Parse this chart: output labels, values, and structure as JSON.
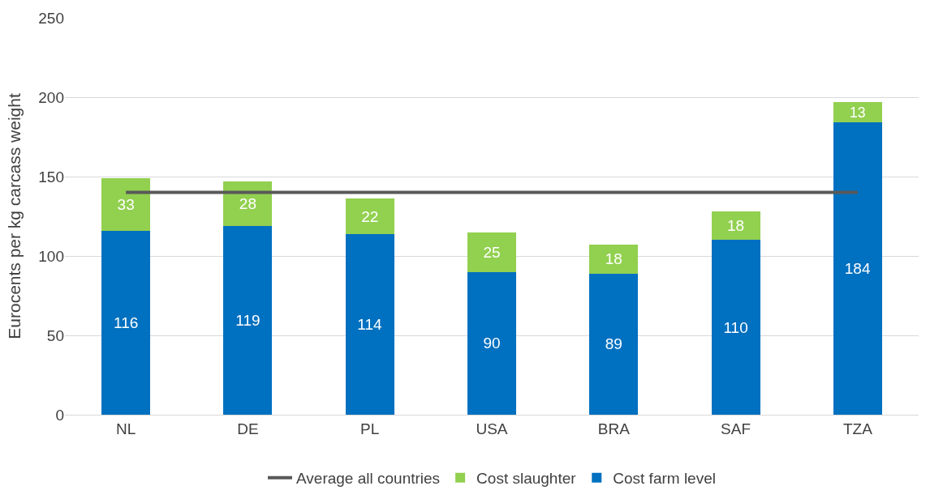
{
  "chart_data": {
    "type": "bar",
    "stacked": true,
    "ylabel": "Eurocents per kg carcass weight",
    "categories": [
      "NL",
      "DE",
      "PL",
      "USA",
      "BRA",
      "SAF",
      "TZA"
    ],
    "series": [
      {
        "name": "Cost farm level",
        "color": "#0070c0",
        "values": [
          116,
          119,
          114,
          90,
          89,
          110,
          184
        ],
        "value_labels": [
          "116",
          "119",
          "114",
          "90",
          "89",
          "110",
          "184"
        ]
      },
      {
        "name": "Cost slaughter",
        "color": "#92d050",
        "values": [
          33,
          28,
          22,
          25,
          18,
          18,
          13
        ],
        "value_labels": [
          "33",
          "28",
          "22",
          "25",
          "18",
          "18",
          "13"
        ]
      },
      {
        "name": "Average all countries",
        "type": "line",
        "color": "#595959",
        "values": [
          140,
          140,
          140,
          140,
          140,
          140,
          140
        ]
      }
    ],
    "ylim": [
      0,
      250
    ],
    "yticks": [
      0,
      50,
      100,
      150,
      200,
      250
    ],
    "grid": "y",
    "legend": "bottom"
  }
}
